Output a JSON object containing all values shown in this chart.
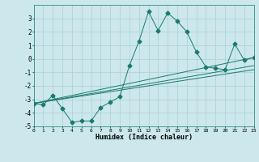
{
  "title": "",
  "xlabel": "Humidex (Indice chaleur)",
  "ylabel": "",
  "bg_color": "#cce8ed",
  "grid_color": "#aacdd5",
  "line_color": "#1a7a6e",
  "x_min": 0,
  "x_max": 23,
  "y_min": -5,
  "y_max": 4,
  "yticks": [
    -5,
    -4,
    -3,
    -2,
    -1,
    0,
    1,
    2,
    3
  ],
  "xticks": [
    0,
    1,
    2,
    3,
    4,
    5,
    6,
    7,
    8,
    9,
    10,
    11,
    12,
    13,
    14,
    15,
    16,
    17,
    18,
    19,
    20,
    21,
    22,
    23
  ],
  "series1_x": [
    0,
    1,
    2,
    3,
    4,
    5,
    6,
    7,
    8,
    9,
    10,
    11,
    12,
    13,
    14,
    15,
    16,
    17,
    18,
    19,
    20,
    21,
    22,
    23
  ],
  "series1_y": [
    -3.3,
    -3.4,
    -2.7,
    -3.7,
    -4.7,
    -4.6,
    -4.6,
    -3.6,
    -3.2,
    -2.8,
    -0.5,
    1.3,
    3.5,
    2.1,
    3.4,
    2.8,
    2.0,
    0.5,
    -0.6,
    -0.7,
    -0.8,
    1.1,
    -0.1,
    0.1
  ],
  "series2_x": [
    0,
    23
  ],
  "series2_y": [
    -3.3,
    -0.8
  ],
  "series3_x": [
    0,
    23
  ],
  "series3_y": [
    -3.3,
    -0.5
  ],
  "series4_x": [
    0,
    23
  ],
  "series4_y": [
    -3.3,
    0.1
  ]
}
